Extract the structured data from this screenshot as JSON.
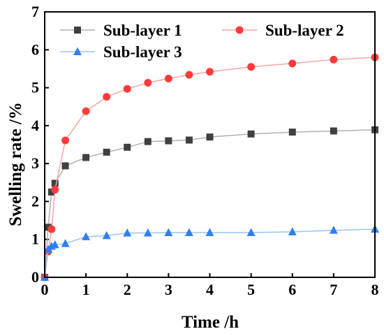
{
  "chart_data": {
    "type": "line",
    "xlabel": "Time /h",
    "ylabel": "Swelling rate /%",
    "xlim": [
      0,
      8
    ],
    "ylim": [
      0,
      7
    ],
    "xticks": [
      0,
      1,
      2,
      3,
      4,
      5,
      6,
      7,
      8
    ],
    "yticks": [
      0,
      1,
      2,
      3,
      4,
      5,
      6,
      7
    ],
    "grid": false,
    "legend_position": "top",
    "series": [
      {
        "name": "Sub-layer 1",
        "color": "#404040",
        "line_color": "#b0b0b0",
        "marker": "square",
        "x": [
          0,
          0.083,
          0.167,
          0.25,
          0.5,
          1,
          1.5,
          2,
          2.5,
          3,
          3.5,
          4,
          5,
          6,
          7,
          8
        ],
        "y": [
          0,
          1.32,
          2.25,
          2.48,
          2.94,
          3.16,
          3.3,
          3.43,
          3.58,
          3.6,
          3.62,
          3.7,
          3.78,
          3.83,
          3.86,
          3.89
        ]
      },
      {
        "name": "Sub-layer 2",
        "color": "#ff3b3b",
        "line_color": "#f6a6a6",
        "marker": "circle",
        "x": [
          0,
          0.083,
          0.167,
          0.25,
          0.5,
          1,
          1.5,
          2,
          2.5,
          3,
          3.5,
          4,
          5,
          6,
          7,
          8
        ],
        "y": [
          0,
          0.68,
          1.27,
          2.31,
          3.61,
          4.38,
          4.76,
          4.97,
          5.13,
          5.24,
          5.34,
          5.42,
          5.55,
          5.64,
          5.74,
          5.8
        ]
      },
      {
        "name": "Sub-layer 3",
        "color": "#2f80ed",
        "line_color": "#9cc3f2",
        "marker": "triangle",
        "x": [
          0,
          0.083,
          0.167,
          0.25,
          0.5,
          1,
          1.5,
          2,
          2.5,
          3,
          3.5,
          4,
          5,
          6,
          7,
          8
        ],
        "y": [
          0,
          0.73,
          0.82,
          0.86,
          0.89,
          1.07,
          1.1,
          1.17,
          1.17,
          1.18,
          1.18,
          1.18,
          1.18,
          1.2,
          1.24,
          1.27
        ]
      }
    ]
  }
}
